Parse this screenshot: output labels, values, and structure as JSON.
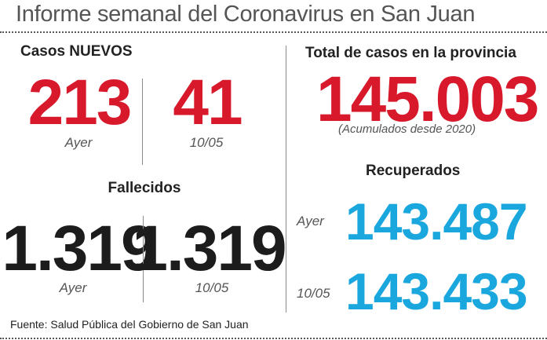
{
  "title": "Informe semanal del Coronavirus en San Juan",
  "casos_nuevos": {
    "heading": "Casos NUEVOS",
    "ayer_value": "213",
    "ayer_label": "Ayer",
    "date_value": "41",
    "date_label": "10/05"
  },
  "fallecidos": {
    "heading": "Fallecidos",
    "ayer_value": "1.319",
    "ayer_label": "Ayer",
    "date_value": "1.319",
    "date_label": "10/05"
  },
  "total": {
    "heading": "Total de casos en la provincia",
    "value": "145.003",
    "note": "(Acumulados desde 2020)"
  },
  "recuperados": {
    "heading": "Recuperados",
    "ayer_label": "Ayer",
    "ayer_value": "143.487",
    "date_label": "10/05",
    "date_value": "143.433"
  },
  "source": "Fuente: Salud Pública del Gobierno de San Juan",
  "colors": {
    "new_cases": "#d8192b",
    "deaths": "#1c1c1c",
    "recovered": "#1aa7de"
  }
}
